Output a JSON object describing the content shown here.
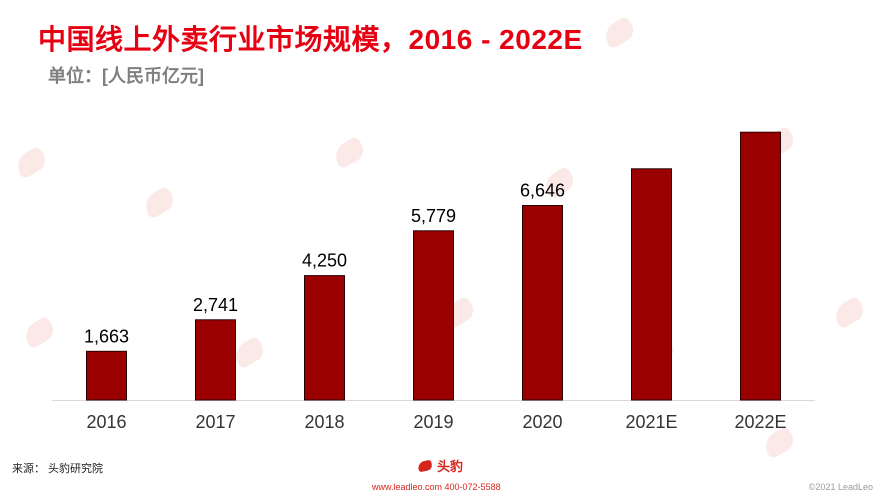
{
  "header": {
    "title": "中国线上外卖行业市场规模，2016 - 2022E",
    "unit": "单位：[人民币亿元]"
  },
  "footer": {
    "source": "来源： 头豹研究院",
    "brand_name": "头豹",
    "contact": "www.leadleo.com  400-072-5588",
    "copyright": "©2021 LeadLeo"
  },
  "colors": {
    "title": "#e60012",
    "bar": "#9b0000",
    "bar_border": "#2a0000",
    "axis": "#d9d9d9"
  },
  "icons": {
    "logo": "leopard-head-icon",
    "watermark": "leopard-head-icon"
  },
  "chart_data": {
    "type": "bar",
    "title": "中国线上外卖行业市场规模，2016 - 2022E",
    "subtitle": "单位：[人民币亿元]",
    "categories": [
      "2016",
      "2017",
      "2018",
      "2019",
      "2020",
      "2021E",
      "2022E"
    ],
    "values": [
      1663,
      2741,
      4250,
      5779,
      6646,
      7900,
      9150
    ],
    "data_labels": [
      "1,663",
      "2,741",
      "4,250",
      "5,779",
      "6,646",
      "",
      ""
    ],
    "xlabel": "",
    "ylabel": "",
    "ylim": [
      0,
      9600
    ],
    "grid": false,
    "legend": "none"
  }
}
